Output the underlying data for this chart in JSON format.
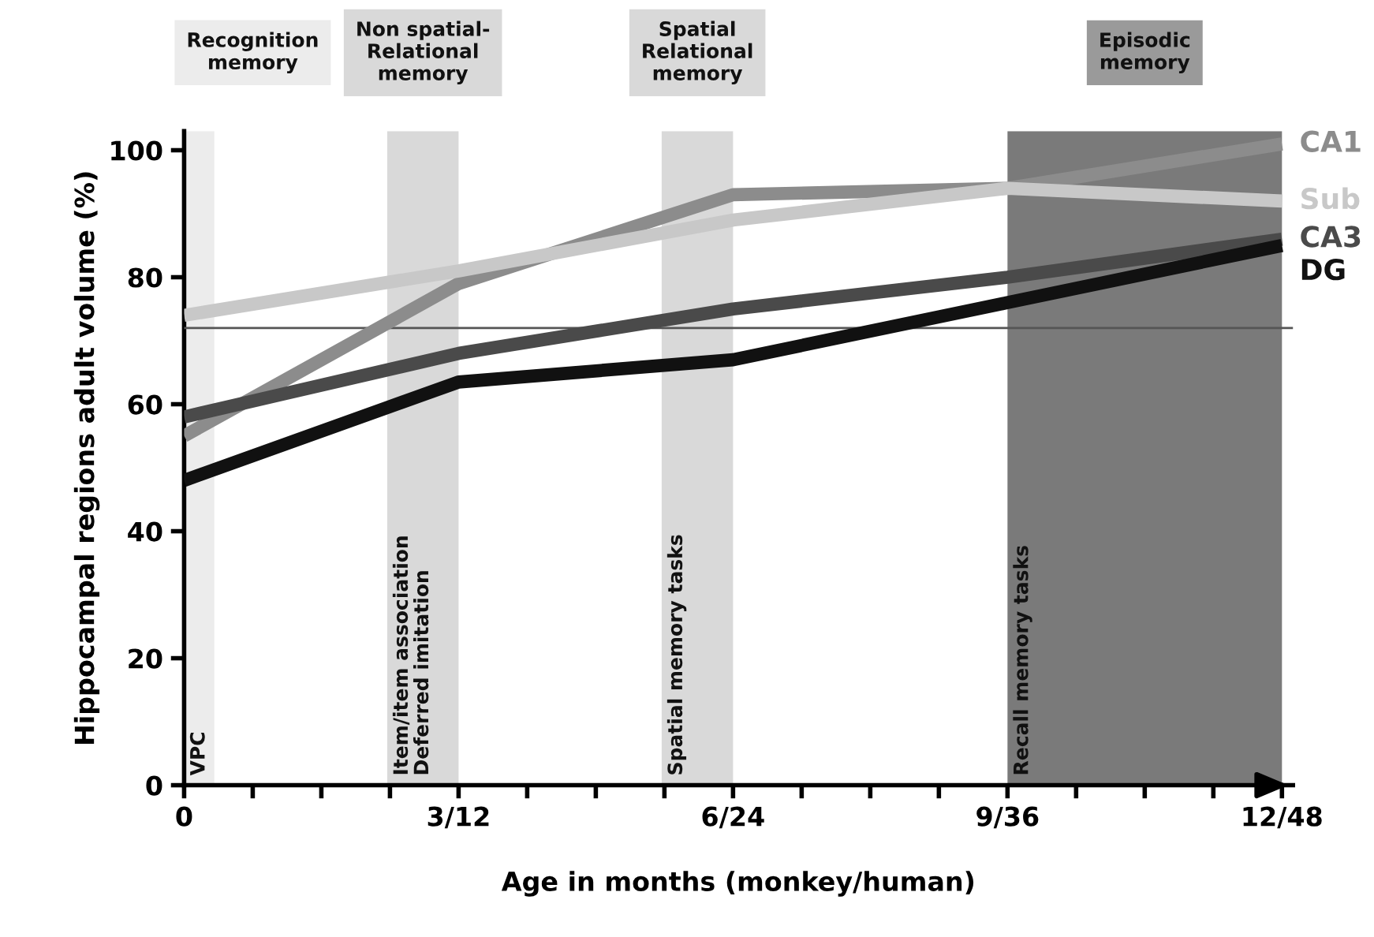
{
  "chart_data": {
    "type": "line",
    "xlabel": "Age in months (monkey/human)",
    "ylabel": "Hippocampal regions adult volume (%)",
    "categories": [
      "0",
      "3/12",
      "6/24",
      "9/36",
      "12/48"
    ],
    "series": [
      {
        "name": "CA1",
        "color": "#8c8c8c",
        "values": [
          55,
          79,
          93,
          94,
          101
        ]
      },
      {
        "name": "Sub",
        "color": "#c8c8c8",
        "values": [
          74,
          81,
          89,
          94,
          92
        ]
      },
      {
        "name": "CA3",
        "color": "#4a4a4a",
        "values": [
          58,
          68,
          75,
          80,
          86
        ]
      },
      {
        "name": "DG",
        "color": "#111111",
        "values": [
          48,
          63.5,
          67,
          76,
          85
        ]
      }
    ],
    "ylim": [
      0,
      103
    ],
    "yticks": [
      0,
      20,
      40,
      60,
      80,
      100
    ],
    "ref_lines": [
      {
        "axis": "y",
        "value": 72,
        "color": "#555555"
      }
    ],
    "bands": [
      {
        "axis": "x",
        "from": "0",
        "to": "0",
        "label": "VPC",
        "color": "#ececec"
      },
      {
        "axis": "x",
        "from": "3/12",
        "to": "3/12",
        "label": "Item/item association\nDeferred imitation",
        "color": "#d9d9d9"
      },
      {
        "axis": "x",
        "from": "6/24",
        "to": "6/24",
        "label": "Spatial memory tasks",
        "color": "#d9d9d9"
      },
      {
        "axis": "x",
        "from": "9/36",
        "to": "12/48",
        "label": "Recall memory tasks",
        "color": "#7a7a7a"
      }
    ],
    "annotations": [
      "Recognition\nmemory",
      "Non spatial-\nRelational\nmemory",
      "Spatial\nRelational\nmemory",
      "Episodic\nmemory"
    ],
    "grid": false,
    "legend": false,
    "line_style": "solid",
    "marker": "none"
  }
}
